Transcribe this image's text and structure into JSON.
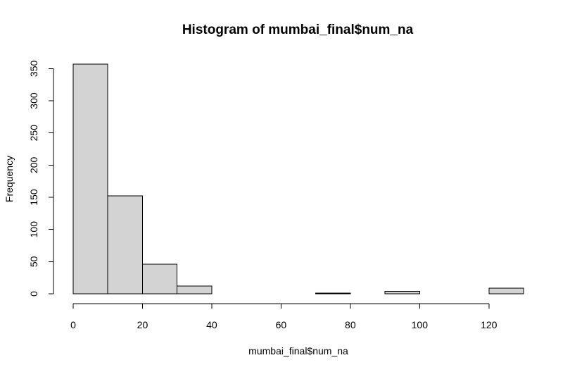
{
  "chart_data": {
    "type": "bar",
    "title": "Histogram of mumbai_final$num_na",
    "xlabel": "mumbai_final$num_na",
    "ylabel": "Frequency",
    "bin_edges": [
      0,
      10,
      20,
      30,
      40,
      50,
      60,
      70,
      80,
      90,
      100,
      110,
      120,
      130
    ],
    "values": [
      357,
      152,
      46,
      12,
      0,
      0,
      0,
      1,
      0,
      4,
      0,
      0,
      9
    ],
    "xlim": [
      0,
      130
    ],
    "ylim": [
      0,
      357
    ],
    "x_ticks": [
      0,
      20,
      40,
      60,
      80,
      100,
      120
    ],
    "y_ticks": [
      0,
      50,
      100,
      150,
      200,
      250,
      300,
      350
    ],
    "bar_fill": "#d3d3d3",
    "bar_stroke": "#000000",
    "grid": false,
    "legend": "none"
  }
}
